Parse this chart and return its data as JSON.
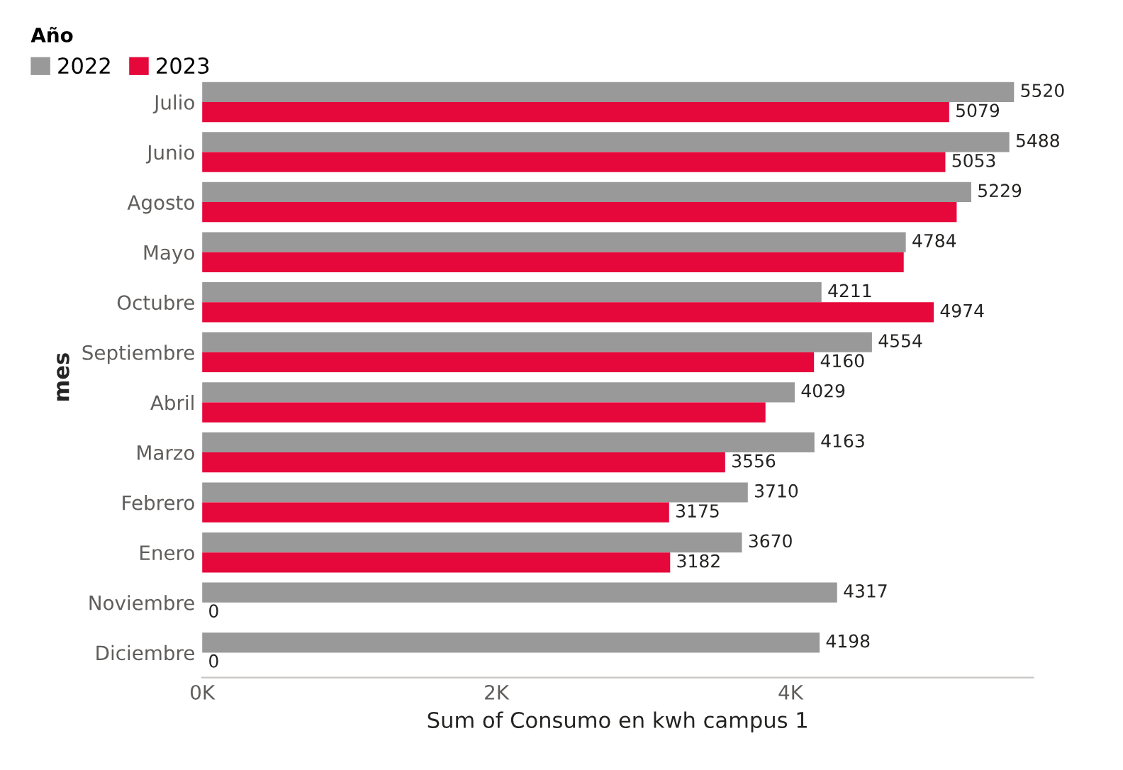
{
  "chart_data": {
    "type": "bar",
    "orientation": "horizontal",
    "xlabel": "Sum of Consumo en kwh campus 1",
    "ylabel": "mes",
    "legend_title": "Año",
    "legend": "top left",
    "categories": [
      "Julio",
      "Junio",
      "Agosto",
      "Mayo",
      "Octubre",
      "Septiembre",
      "Abril",
      "Marzo",
      "Febrero",
      "Enero",
      "Noviembre",
      "Diciembre"
    ],
    "series": [
      {
        "name": "2022",
        "color": "#999999",
        "values": [
          5520,
          5488,
          5229,
          4784,
          4211,
          4554,
          4029,
          4163,
          3710,
          3670,
          4317,
          4198
        ],
        "value_labels": [
          "5520",
          "5488",
          "5229",
          "4784",
          "4211",
          "4554",
          "4029",
          "4163",
          "3710",
          "3670",
          "4317",
          "4198"
        ]
      },
      {
        "name": "2023",
        "color": "#e6083a",
        "values": [
          5079,
          5053,
          5130,
          4770,
          4974,
          4160,
          3830,
          3556,
          3175,
          3182,
          0,
          0
        ],
        "value_labels": [
          "5079",
          "5053",
          null,
          null,
          "4974",
          "4160",
          null,
          "3556",
          "3175",
          "3182",
          "0",
          "0"
        ]
      }
    ],
    "xlim": [
      0,
      5650
    ],
    "xticks": [
      {
        "value": 0,
        "label": "0K"
      },
      {
        "value": 2000,
        "label": "2K"
      },
      {
        "value": 4000,
        "label": "4K"
      }
    ],
    "grid": false
  }
}
